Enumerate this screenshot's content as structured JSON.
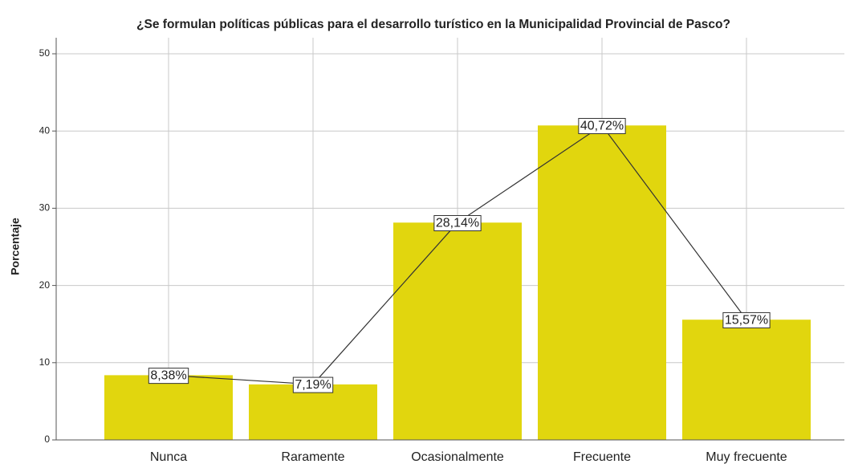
{
  "chart_data": {
    "type": "bar",
    "title": "¿Se formulan políticas públicas para el desarrollo turístico en la Municipalidad Provincial de Pasco?",
    "y_label": "Porcentaje",
    "categories": [
      "Nunca",
      "Raramente",
      "Ocasionalmente",
      "Frecuente",
      "Muy frecuente"
    ],
    "values": [
      8.38,
      7.19,
      28.14,
      40.72,
      15.57
    ],
    "value_labels": [
      "8,38%",
      "7,19%",
      "28,14%",
      "40,72%",
      "15,57%"
    ],
    "color": "#e1d60e",
    "overlay_line": true,
    "line_color": "#333333",
    "ylim": [
      0,
      50
    ],
    "yticks": [
      0,
      10,
      20,
      30,
      40,
      50
    ],
    "grid": true
  }
}
